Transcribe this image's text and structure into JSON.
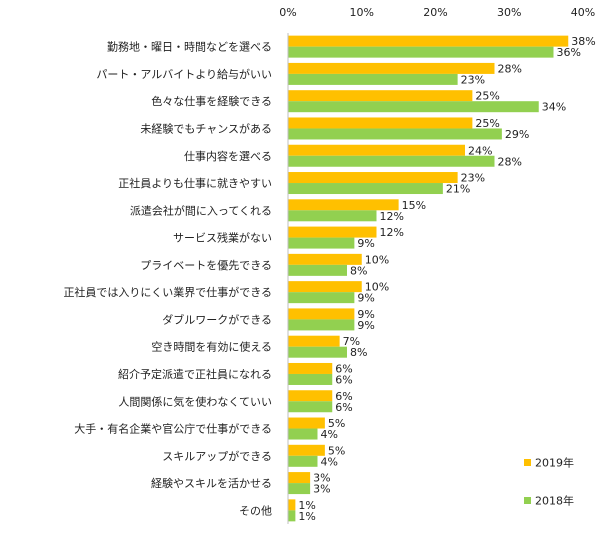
{
  "chart_data": {
    "type": "bar",
    "orientation": "horizontal",
    "categories": [
      "勤務地・曜日・時間などを選べる",
      "パート・アルバイトより給与がいい",
      "色々な仕事を経験できる",
      "未経験でもチャンスがある",
      "仕事内容を選べる",
      "正社員よりも仕事に就きやすい",
      "派遣会社が間に入ってくれる",
      "サービス残業がない",
      "プライベートを優先できる",
      "正社員では入りにくい業界で仕事ができる",
      "ダブルワークができる",
      "空き時間を有効に使える",
      "紹介予定派遣で正社員になれる",
      "人間関係に気を使わなくていい",
      "大手・有名企業や官公庁で仕事ができる",
      "スキルアップができる",
      "経験やスキルを活かせる",
      "その他"
    ],
    "series": [
      {
        "name": "2019年",
        "color": "#FFC000",
        "values": [
          38,
          28,
          25,
          25,
          24,
          23,
          15,
          12,
          10,
          10,
          9,
          7,
          6,
          6,
          5,
          5,
          3,
          1
        ],
        "labels": [
          "38%",
          "28%",
          "25%",
          "25%",
          "24%",
          "23%",
          "15%",
          "12%",
          "10%",
          "10%",
          "9%",
          "7%",
          "6%",
          "6%",
          "5%",
          "5%",
          "3%",
          "1%"
        ]
      },
      {
        "name": "2018年",
        "color": "#92D050",
        "values": [
          36,
          23,
          34,
          29,
          28,
          21,
          12,
          9,
          8,
          9,
          9,
          8,
          6,
          6,
          4,
          4,
          3,
          1
        ],
        "labels": [
          "36%",
          "23%",
          "34%",
          "29%",
          "28%",
          "21%",
          "12%",
          "9%",
          "8%",
          "9%",
          "9%",
          "8%",
          "6%",
          "6%",
          "4%",
          "4%",
          "3%",
          "1%"
        ]
      }
    ],
    "xlim": [
      0,
      40
    ],
    "ticks": [
      0,
      10,
      20,
      30,
      40
    ],
    "tick_labels": [
      "0%",
      "10%",
      "20%",
      "30%",
      "40%"
    ],
    "xlabel": "",
    "ylabel": "",
    "title": "",
    "grid": false,
    "legend_position": "bottom-right"
  }
}
